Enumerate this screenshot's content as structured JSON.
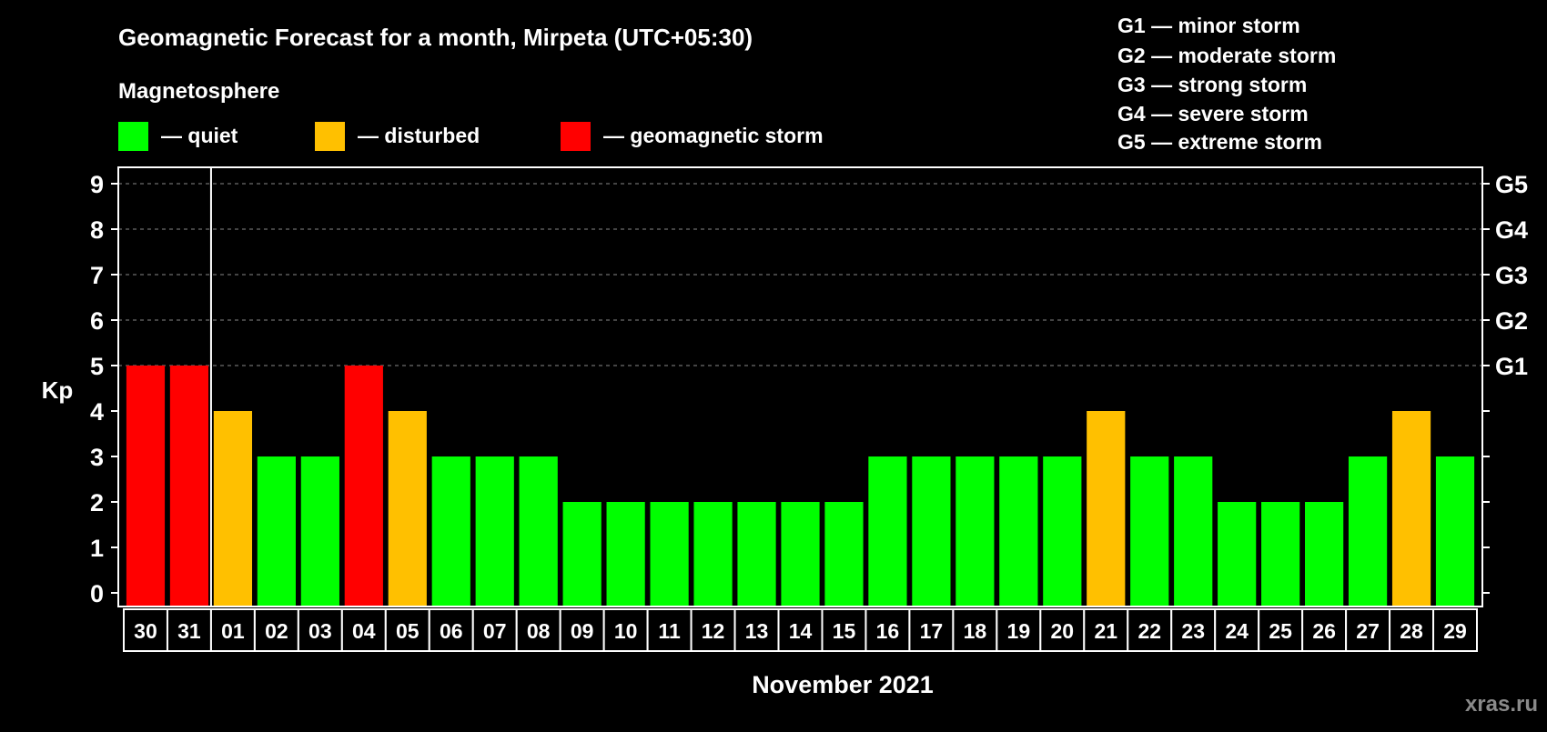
{
  "chart_data": {
    "type": "bar",
    "title": "Geomagnetic Forecast for a month, Mirpeta (UTC+05:30)",
    "subtitle": "Magnetosphere",
    "xlabel": "November 2021",
    "ylabel": "Kp",
    "ylim": [
      0,
      9
    ],
    "yticks": [
      "0",
      "1",
      "2",
      "3",
      "4",
      "5",
      "6",
      "7",
      "8",
      "9"
    ],
    "grid": "dashed horizontal lines at Kp 5-9",
    "categories": [
      "30",
      "31",
      "01",
      "02",
      "03",
      "04",
      "05",
      "06",
      "07",
      "08",
      "09",
      "10",
      "11",
      "12",
      "13",
      "14",
      "15",
      "16",
      "17",
      "18",
      "19",
      "20",
      "21",
      "22",
      "23",
      "24",
      "25",
      "26",
      "27",
      "28",
      "29"
    ],
    "values": [
      5,
      5,
      4,
      3,
      3,
      5,
      4,
      3,
      3,
      3,
      2,
      2,
      2,
      2,
      2,
      2,
      2,
      3,
      3,
      3,
      3,
      3,
      4,
      3,
      3,
      2,
      2,
      2,
      3,
      4,
      3
    ],
    "legend": [
      {
        "label": "— quiet",
        "color": "#00ff00"
      },
      {
        "label": "— disturbed",
        "color": "#ffc000"
      },
      {
        "label": "— geomagnetic storm",
        "color": "#ff0000"
      }
    ],
    "g_scale_axis": [
      {
        "label": "G1",
        "kp": 5
      },
      {
        "label": "G2",
        "kp": 6
      },
      {
        "label": "G3",
        "kp": 7
      },
      {
        "label": "G4",
        "kp": 8
      },
      {
        "label": "G5",
        "kp": 9
      }
    ],
    "g_scale_legend": [
      "G1 — minor storm",
      "G2 — moderate storm",
      "G3 — strong storm",
      "G4 — severe storm",
      "G5 — extreme storm"
    ]
  },
  "watermark": "xras.ru"
}
